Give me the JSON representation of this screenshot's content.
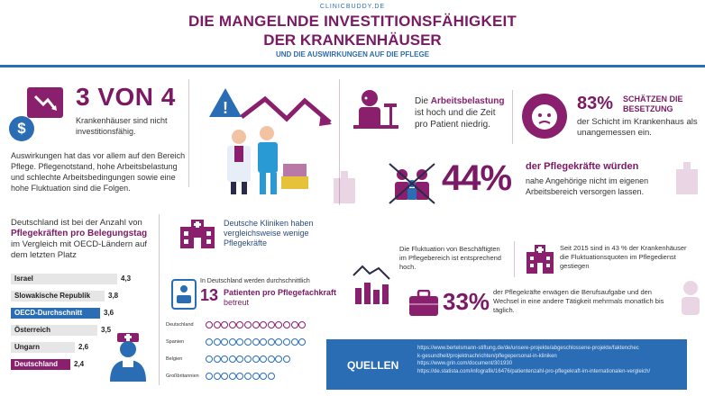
{
  "header": {
    "brand": "CLINICBUDDY.DE",
    "title_line1": "DIE MANGELNDE INVESTITIONSFÄHIGKEIT",
    "title_line2": "DER KRANKENHÄUSER",
    "subtitle": "UND DIE AUSWIRKUNGEN AUF DIE PFLEGE"
  },
  "stat_3von4": {
    "big": "3 VON 4",
    "line1": "Krankenhäuser sind nicht",
    "line2": "investitionsfähig."
  },
  "auswirkungen_text": "Auswirkungen hat das vor allem auf den Bereich Pflege. Pflegenotstand, hohe Arbeitsbelastung und schlechte Arbeitsbedingungen sowie eine hohe Fluktuation sind die Folgen.",
  "oecd_section": {
    "line1": "Deutschland ist bei der Anzahl von",
    "bold": "Pflegekräften pro Belegungstag",
    "line3": "im Vergleich mit OECD-Ländern auf dem letzten Platz"
  },
  "chart_data": {
    "type": "bar",
    "orientation": "horizontal",
    "categories": [
      "Israel",
      "Slowakische Republik",
      "OECD-Durchschnitt",
      "Österreich",
      "Ungarn",
      "Deutschland"
    ],
    "values": [
      4.3,
      3.8,
      3.6,
      3.5,
      2.6,
      2.4
    ],
    "value_labels": [
      "4,3",
      "3,8",
      "3,6",
      "3,5",
      "2,6",
      "2,4"
    ],
    "highlight": {
      "OECD-Durchschnitt": "#2a6db5",
      "Deutschland": "#8a1f6e"
    },
    "default_color": "#e6e6e6"
  },
  "kliniken": {
    "text": "Deutsche Kliniken haben vergleichsweise wenige Pflegekräfte"
  },
  "patienten": {
    "pre": "In Deutschland werden durchschnittlich",
    "number": "13",
    "bold": "Patienten pro Pflegefachkraft",
    "end": "betreut",
    "dot_chart": [
      {
        "country": "Deutschland",
        "count": 13
      },
      {
        "country": "Spanien",
        "count": 13
      },
      {
        "country": "Belgien",
        "count": 11
      },
      {
        "country": "Großbritannien",
        "count": 9
      }
    ]
  },
  "belastung": {
    "pre": "Die",
    "bold": "Arbeitsbelastung",
    "rest": "ist hoch und die Zeit pro Patient niedrig."
  },
  "stat_83": {
    "pct": "83%",
    "label": "SCHÄTZEN DIE BESETZUNG",
    "text": "der Schicht im Krankenhaus als unangemessen ein."
  },
  "stat_44": {
    "pct": "44%",
    "headline": "der Pflegekräfte würden",
    "text": "nahe Angehörige nicht im eigenen Arbeitsbereich versorgen lassen."
  },
  "fluktuation": {
    "text": "Die Fluktuation von Beschäftigten im Pflegebereich ist entsprechend hoch."
  },
  "stat_2015": {
    "text": "Seit 2015 sind in 43 % der Krankenhäuser die Fluktuationsquoten im Pflegedienst gestiegen"
  },
  "stat_33": {
    "pct": "33%",
    "text": "der Pflegekräfte erwägen die Berufsaufgabe und den Wechsel in eine andere Tätigkeit mehrmals monatlich bis täglich."
  },
  "quellen": {
    "label": "QUELLEN",
    "links": [
      "https://www.bertelsmann-stiftung.de/de/unsere-projekte/abgeschlossene-projekte/faktenchec",
      "k-gesundheit/projektnachrichten/pflegepersonal-in-kliniken",
      "https://www.grin.com/document/301930",
      "https://de.statista.com/infografik/16476/patientenzahl-pro-pflegekraft-im-internationalen-vergleich/"
    ]
  },
  "colors": {
    "primary": "#7a1a64",
    "accent": "#2a6db5"
  }
}
